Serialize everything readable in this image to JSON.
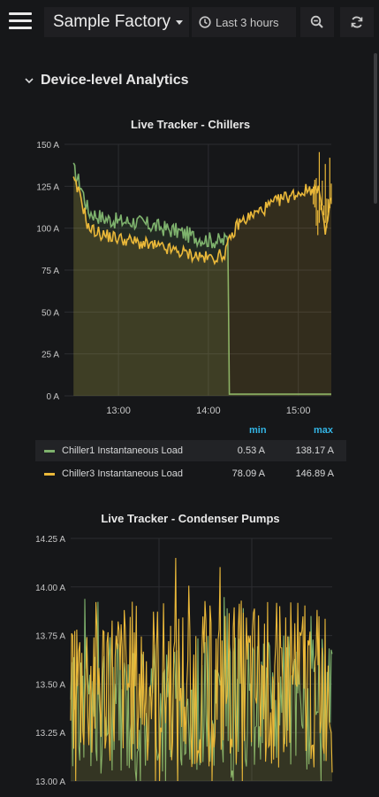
{
  "header": {
    "dashboard_title": "Sample Factory",
    "time_range": "Last 3 hours",
    "icons": [
      "menu-icon",
      "caret-down-icon",
      "clock-icon",
      "zoom-out-icon",
      "refresh-icon"
    ]
  },
  "row": {
    "title": "Device-level Analytics"
  },
  "colors": {
    "background": "#161719",
    "series_green": "#7eb26d",
    "series_yellow": "#eab839",
    "legend_accent": "#33b5e5",
    "threshold_line": "#7eb26d"
  },
  "chart_data": [
    {
      "type": "line",
      "title": "Live Tracker - Chillers",
      "ylabel": "",
      "xlabel": "",
      "ylim": [
        0,
        150
      ],
      "y_ticks": [
        "0 A",
        "25 A",
        "50 A",
        "75 A",
        "100 A",
        "125 A",
        "150 A"
      ],
      "x_ticks": [
        "13:00",
        "14:00",
        "15:00"
      ],
      "grid": true,
      "legend_placement": "bottom",
      "legend_columns": [
        "min",
        "max"
      ],
      "series": [
        {
          "name": "Chiller1 Instantaneous Load",
          "color": "#7eb26d",
          "min": "0.53 A",
          "max": "138.17 A",
          "x": [
            "12:30",
            "12:35",
            "12:40",
            "12:50",
            "13:00",
            "13:10",
            "13:20",
            "13:30",
            "13:40",
            "13:50",
            "14:00",
            "14:10",
            "14:13",
            "14:14",
            "15:00",
            "15:22"
          ],
          "values": [
            135,
            125,
            110,
            106,
            104,
            104,
            102,
            100,
            98,
            95,
            93,
            92,
            95,
            1,
            1,
            1
          ]
        },
        {
          "name": "Chiller3 Instantaneous Load",
          "color": "#eab839",
          "min": "78.09 A",
          "max": "146.89 A",
          "x": [
            "12:30",
            "12:35",
            "12:40",
            "12:50",
            "13:00",
            "13:10",
            "13:20",
            "13:30",
            "13:40",
            "13:50",
            "14:00",
            "14:10",
            "14:20",
            "14:30",
            "14:40",
            "14:50",
            "15:00",
            "15:10",
            "15:15",
            "15:18",
            "15:22"
          ],
          "values": [
            128,
            118,
            100,
            96,
            94,
            92,
            90,
            88,
            86,
            84,
            82,
            84,
            103,
            108,
            113,
            118,
            121,
            124,
            120,
            96,
            118
          ]
        }
      ]
    },
    {
      "type": "line",
      "title": "Live Tracker - Condenser Pumps",
      "ylabel": "",
      "xlabel": "",
      "ylim": [
        13.0,
        14.25
      ],
      "y_ticks": [
        "13.00 A",
        "13.25 A",
        "13.50 A",
        "13.75 A",
        "14.00 A",
        "14.25 A"
      ],
      "grid": true,
      "series": [
        {
          "color": "#7eb26d",
          "range": [
            13.0,
            13.95
          ],
          "mean": 13.4
        },
        {
          "color": "#eab839",
          "range": [
            13.0,
            14.15
          ],
          "mean": 13.5
        }
      ]
    }
  ]
}
